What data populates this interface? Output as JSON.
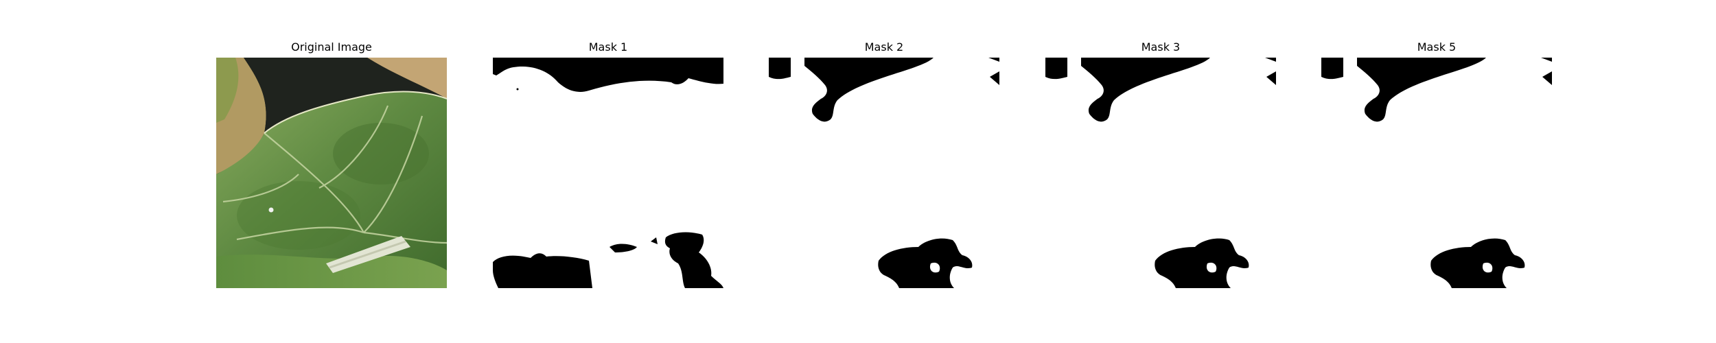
{
  "figure": {
    "panels": [
      {
        "title": "Original Image",
        "kind": "photo"
      },
      {
        "title": "Mask 1",
        "kind": "mask"
      },
      {
        "title": "Mask 2",
        "kind": "mask"
      },
      {
        "title": "Mask 3",
        "kind": "mask"
      },
      {
        "title": "Mask 5",
        "kind": "mask"
      }
    ]
  },
  "colors": {
    "background": "#ffffff",
    "mask_fg": "#ffffff",
    "mask_bg": "#000000",
    "leaf_dark": "#3f6a2c",
    "leaf_mid": "#5f8a42",
    "leaf_light": "#87a85c",
    "dry_leaf": "#b19a62",
    "shadow": "#1f231e",
    "vein": "#c7d6a3",
    "stem": "#e2e5d3"
  }
}
